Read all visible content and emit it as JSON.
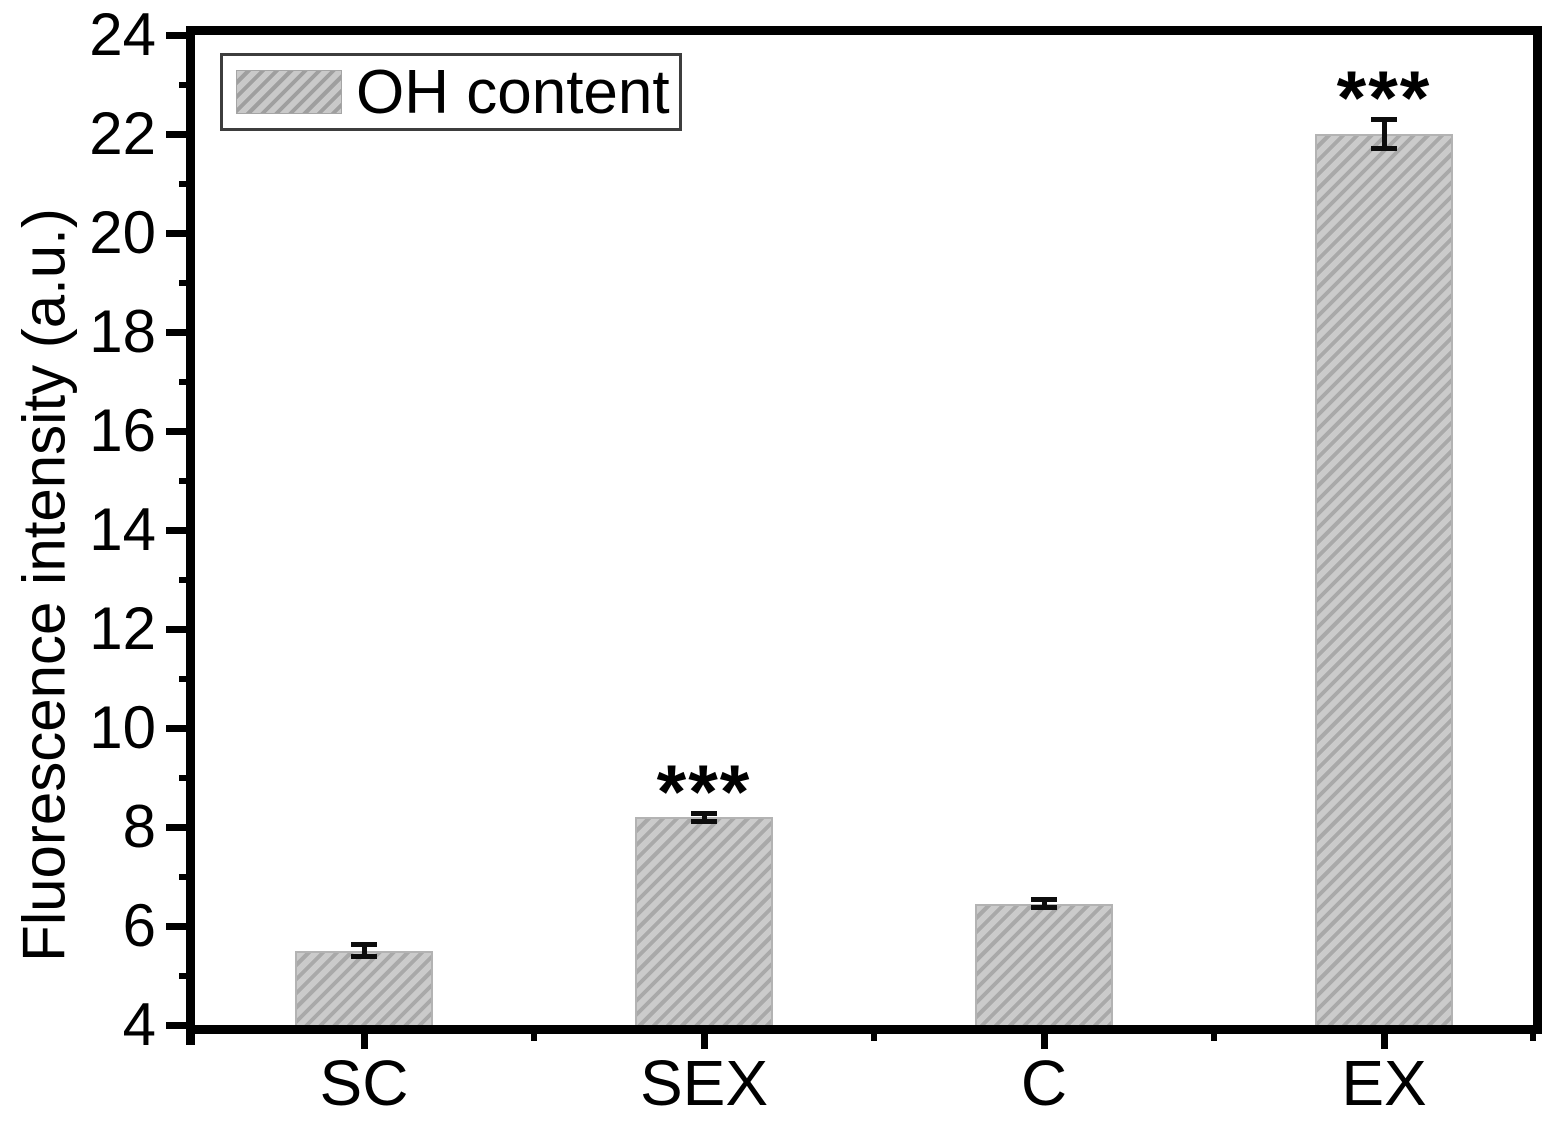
{
  "chart_data": {
    "type": "bar",
    "ylabel": "Fluorescence intensity (a.u.)",
    "xlabel": "",
    "categories": [
      "SC",
      "SEX",
      "C",
      "EX"
    ],
    "series": [
      {
        "name": "OH content",
        "values": [
          5.5,
          8.2,
          6.45,
          22.0
        ],
        "errors": [
          0.12,
          0.08,
          0.08,
          0.3
        ]
      }
    ],
    "annotations": [
      {
        "category": "SEX",
        "text": "***"
      },
      {
        "category": "EX",
        "text": "***"
      }
    ],
    "ylim": [
      4,
      24
    ],
    "ytick_step": 2,
    "yminor_step": 1,
    "legend": {
      "position": "top-left",
      "entries": [
        "OH content"
      ]
    },
    "grid": false,
    "bar_fill": "#cbcbcb",
    "bar_hatch": "#a9a9a9",
    "axis_color": "#000000",
    "error_bar_color": "#0d0d0d"
  }
}
